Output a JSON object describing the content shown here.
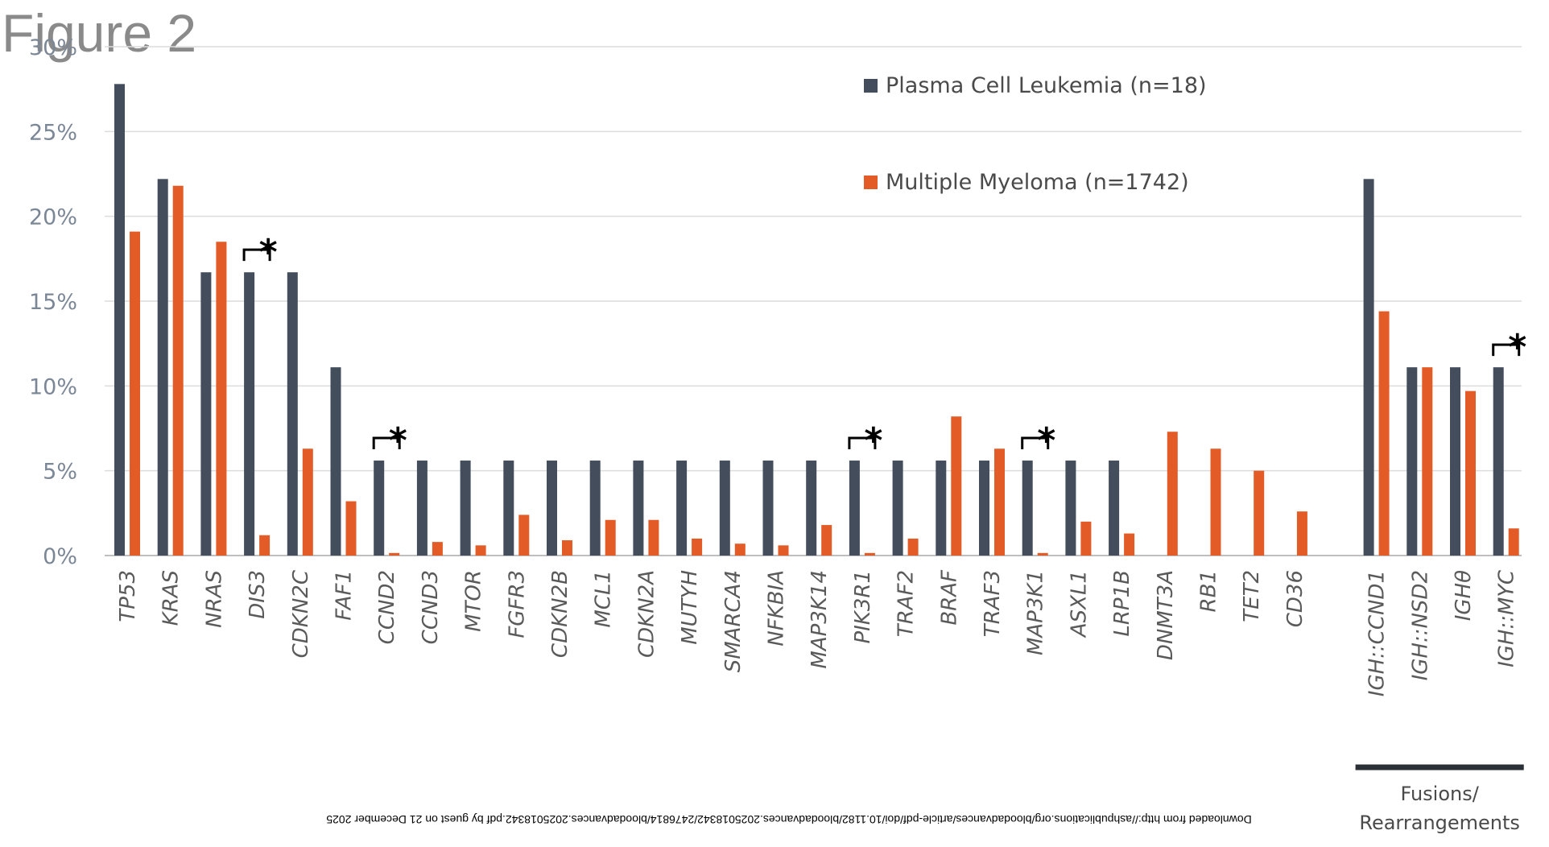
{
  "figure_title": "Figure 2",
  "footer_note": "Downloaded from http://ashpublications.org/bloodadvances/article-pdf/doi/10.1182/bloodadvances.2025018342/2476814/bloodadvances.2025018342.pdf by guest on 21 December 2025",
  "colors": {
    "pcl": "#434d5c",
    "mm": "#e35b26",
    "grid": "#dcdcdc",
    "axis": "#bfbfbf"
  },
  "chart_data": {
    "type": "bar",
    "title": "",
    "xlabel": "",
    "ylabel": "",
    "ylim": [
      0,
      30
    ],
    "yticks": [
      "0%",
      "5%",
      "10%",
      "15%",
      "20%",
      "25%",
      "30%"
    ],
    "grid": true,
    "legend_position": "top-center",
    "categories": [
      "TP53",
      "KRAS",
      "NRAS",
      "DIS3",
      "CDKN2C",
      "FAF1",
      "CCND2",
      "CCND3",
      "MTOR",
      "FGFR3",
      "CDKN2B",
      "MCL1",
      "CDKN2A",
      "MUTYH",
      "SMARCA4",
      "NFKBIA",
      "MAP3K14",
      "PIK3R1",
      "TRAF2",
      "BRAF",
      "TRAF3",
      "MAP3K1",
      "ASXL1",
      "LRP1B",
      "DNMT3A",
      "RB1",
      "TET2",
      "CD36",
      "IGH::CCND1",
      "IGH::NSD2",
      "IGHθ",
      "IGH::MYC"
    ],
    "series": [
      {
        "name": "Plasma Cell Leukemia (n=18)",
        "color": "#434d5c",
        "values": [
          27.8,
          22.2,
          16.7,
          16.7,
          16.7,
          11.1,
          5.6,
          5.6,
          5.6,
          5.6,
          5.6,
          5.6,
          5.6,
          5.6,
          5.6,
          5.6,
          5.6,
          5.6,
          5.6,
          5.6,
          5.6,
          5.6,
          5.6,
          5.6,
          0,
          0,
          0,
          0,
          22.2,
          11.1,
          11.1,
          11.1
        ]
      },
      {
        "name": "Multiple Myeloma (n=1742)",
        "color": "#e35b26",
        "values": [
          19.1,
          21.8,
          18.5,
          1.2,
          6.3,
          3.2,
          0.15,
          0.8,
          0.6,
          2.4,
          0.9,
          2.1,
          2.1,
          1.0,
          0.7,
          0.6,
          1.8,
          0.15,
          1.0,
          8.2,
          6.3,
          0.15,
          2.0,
          1.3,
          7.3,
          6.3,
          5.0,
          2.6,
          14.4,
          11.1,
          9.7,
          1.6
        ]
      }
    ],
    "significance": [
      "DIS3",
      "CCND2",
      "PIK3R1",
      "MAP3K1",
      "IGH::MYC"
    ],
    "significance_symbol": "*",
    "group_label": "Fusions/ Rearrangements",
    "group_label_lines": [
      "Fusions/",
      "Rearrangements"
    ],
    "group_categories": [
      "IGH::CCND1",
      "IGH::NSD2",
      "IGHθ",
      "IGH::MYC"
    ]
  }
}
